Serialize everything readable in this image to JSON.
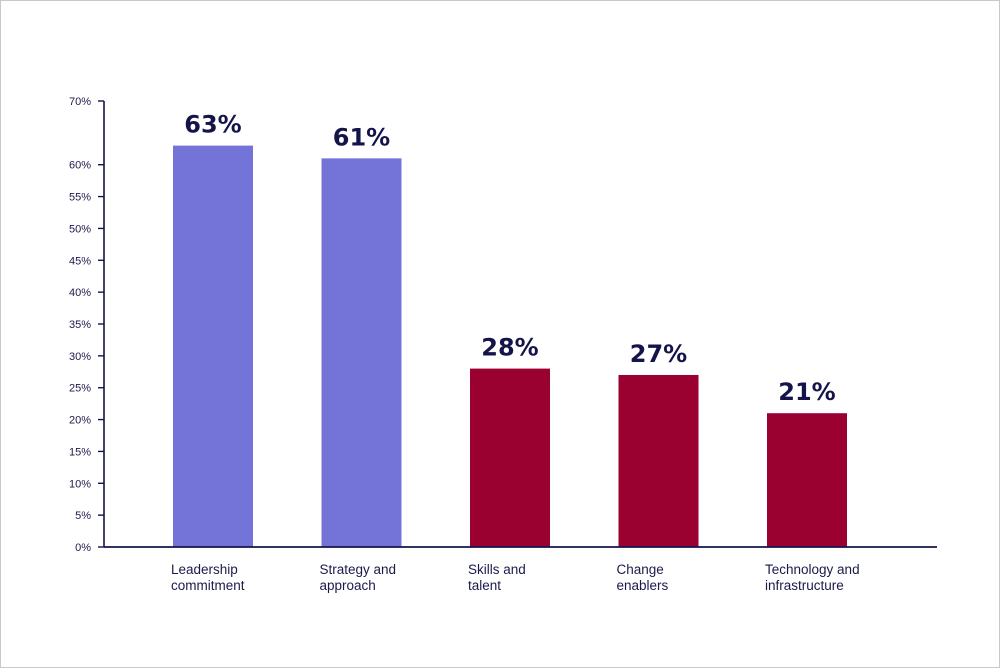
{
  "chart_data": {
    "type": "bar",
    "title": "",
    "xlabel": "",
    "ylabel": "",
    "categories": [
      [
        "Leadership",
        "commitment"
      ],
      [
        "Strategy and",
        "approach"
      ],
      [
        "Skills and",
        "talent"
      ],
      [
        "Change",
        "enablers"
      ],
      [
        "Technology and",
        "infrastructure"
      ]
    ],
    "values": [
      63,
      61,
      28,
      27,
      21
    ],
    "value_labels": [
      "63%",
      "61%",
      "28%",
      "27%",
      "21%"
    ],
    "bar_colors": [
      "#7474d8",
      "#7474d8",
      "#9a0030",
      "#9a0030",
      "#9a0030"
    ],
    "ylim": [
      0,
      70
    ],
    "yticks": [
      0,
      5,
      10,
      15,
      20,
      25,
      30,
      35,
      40,
      45,
      50,
      55,
      60,
      70
    ],
    "ytick_labels": [
      "0%",
      "5%",
      "10%",
      "15%",
      "20%",
      "25%",
      "30%",
      "35%",
      "40%",
      "45%",
      "50%",
      "55%",
      "60%",
      "70%"
    ],
    "grid": false,
    "axis_color": "#14144a"
  }
}
